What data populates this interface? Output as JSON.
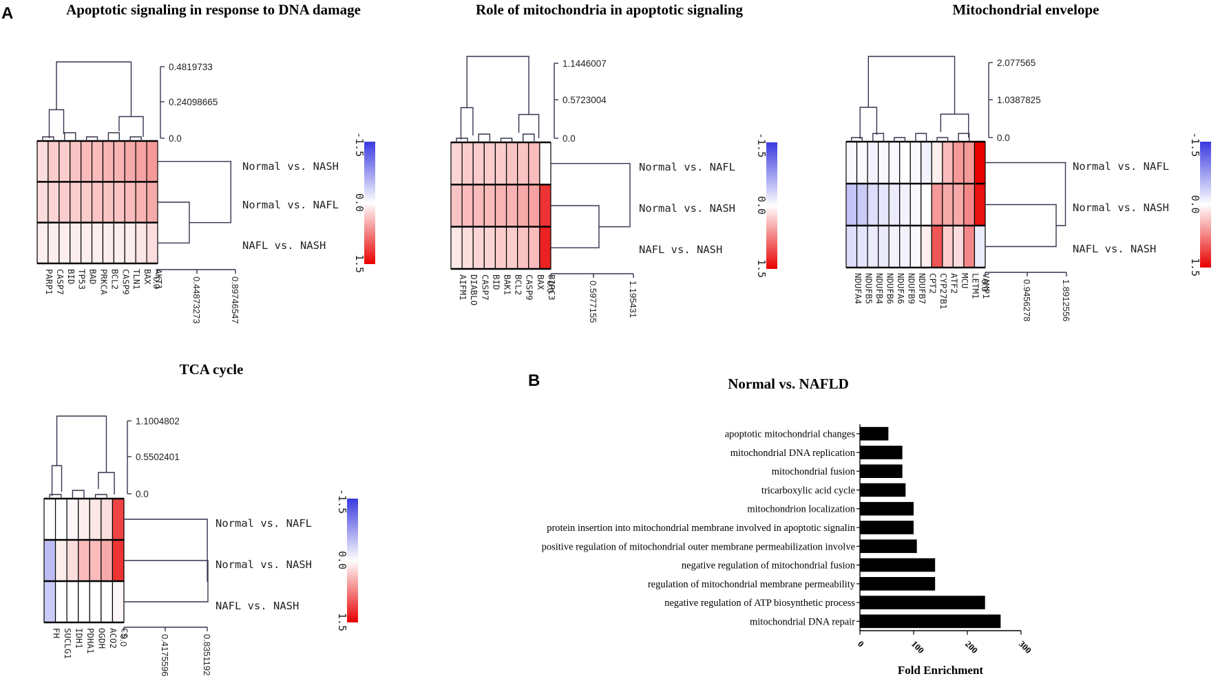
{
  "panel_labels": {
    "a": "A",
    "b": "B"
  },
  "chart_data": [
    {
      "type": "heatmap",
      "title": "Apoptotic signaling in response to DNA damage",
      "genes": [
        "PARP1",
        "CASP7",
        "BID",
        "TP53",
        "BAD",
        "PRKCA",
        "BCL2",
        "CASP9",
        "TLN1",
        "BAX",
        "AKT1"
      ],
      "rows": [
        "Normal vs. NASH",
        "Normal vs. NAFL",
        "NAFL vs. NASH"
      ],
      "values": [
        [
          0.2,
          0.3,
          0.3,
          0.35,
          0.4,
          0.4,
          0.45,
          0.45,
          0.5,
          0.55,
          0.6
        ],
        [
          0.2,
          0.25,
          0.3,
          0.3,
          0.3,
          0.35,
          0.35,
          0.35,
          0.4,
          0.45,
          0.5
        ],
        [
          0.1,
          0.1,
          0.1,
          0.1,
          0.1,
          0.1,
          0.1,
          0.1,
          0.1,
          0.15,
          0.2
        ]
      ],
      "color_scale": {
        "min": -1.5,
        "mid": 0.0,
        "max": 1.5,
        "labels": [
          "-1.5",
          "0.0",
          "1.5"
        ],
        "neg_color": "#3a3ae0",
        "pos_color": "#e80000"
      },
      "col_tree_ticks": [
        "0.4819733",
        "0.24098665",
        "0.0"
      ],
      "row_tree_ticks": [
        "0.0",
        "0.44873273",
        "0.89746547"
      ]
    },
    {
      "type": "heatmap",
      "title": "Role of mitochondria in apoptotic signaling",
      "genes": [
        "AIFM1",
        "DIABLO",
        "CASP7",
        "BID",
        "BAK1",
        "BCL2",
        "CASP9",
        "BAX",
        "BIRC3"
      ],
      "rows": [
        "Normal vs. NAFL",
        "Normal vs. NASH",
        "NAFL vs. NASH"
      ],
      "values": [
        [
          0.25,
          0.3,
          0.3,
          0.3,
          0.3,
          0.35,
          0.35,
          0.4,
          0.0
        ],
        [
          0.35,
          0.4,
          0.4,
          0.4,
          0.45,
          0.45,
          0.5,
          0.55,
          1.2
        ],
        [
          0.15,
          0.2,
          0.25,
          0.25,
          0.3,
          0.3,
          0.35,
          0.4,
          1.3
        ]
      ],
      "color_scale": {
        "min": -1.5,
        "mid": 0.0,
        "max": 1.5,
        "labels": [
          "-1.5",
          "0.0",
          "1.5"
        ],
        "neg_color": "#3a3ae0",
        "pos_color": "#e80000"
      },
      "col_tree_ticks": [
        "1.1446007",
        "0.5723004",
        "0.0"
      ],
      "row_tree_ticks": [
        "0.0",
        "0.5977155",
        "1.195431"
      ]
    },
    {
      "type": "heatmap",
      "title": "Mitochondrial envelope",
      "genes": [
        "NDUFA4",
        "NDUFB5",
        "NDUFB4",
        "NDUFB6",
        "NDUFA6",
        "NDUFB9",
        "NDUFB7",
        "CPT2",
        "CYP27B1",
        "ATF2",
        "MCU",
        "LETM1",
        "VAMP1"
      ],
      "rows": [
        "Normal vs. NAFL",
        "Normal vs. NASH",
        "NAFL vs. NASH"
      ],
      "values": [
        [
          -0.05,
          -0.05,
          -0.1,
          -0.05,
          -0.05,
          0.0,
          -0.05,
          -0.1,
          0.1,
          0.4,
          0.6,
          0.6,
          1.5
        ],
        [
          -0.45,
          -0.4,
          -0.25,
          -0.2,
          -0.15,
          -0.1,
          -0.05,
          0.0,
          0.6,
          0.5,
          0.5,
          0.7,
          1.4
        ],
        [
          -0.25,
          -0.2,
          -0.15,
          -0.15,
          -0.1,
          -0.1,
          -0.05,
          0.1,
          1.0,
          0.3,
          0.2,
          0.7,
          -0.15
        ]
      ],
      "color_scale": {
        "min": -1.5,
        "mid": 0.0,
        "max": 1.5,
        "labels": [
          "-1.5",
          "0.0",
          "1.5"
        ],
        "neg_color": "#3a3ae0",
        "pos_color": "#e80000"
      },
      "col_tree_ticks": [
        "2.077565",
        "1.0387825",
        "0.0"
      ],
      "row_tree_ticks": [
        "0.0",
        "0.9456278",
        "1.8912556"
      ]
    },
    {
      "type": "heatmap",
      "title": "TCA cycle",
      "genes": [
        "FH",
        "SUCLG1",
        "IDH1",
        "PDHA1",
        "OGDH",
        "ACO2",
        "CS"
      ],
      "rows": [
        "Normal vs. NAFL",
        "Normal vs. NASH",
        "NAFL vs. NASH"
      ],
      "values": [
        [
          0.0,
          0.0,
          0.05,
          0.1,
          0.15,
          0.2,
          1.1
        ],
        [
          -0.5,
          0.1,
          0.2,
          0.4,
          0.4,
          0.5,
          1.2
        ],
        [
          -0.4,
          0.0,
          0.0,
          0.0,
          0.0,
          0.0,
          0.05
        ]
      ],
      "color_scale": {
        "min": -1.5,
        "mid": 0.0,
        "max": 1.5,
        "labels": [
          "-1.5",
          "0.0",
          "1.5"
        ],
        "neg_color": "#3a3ae0",
        "pos_color": "#e80000"
      },
      "col_tree_ticks": [
        "1.1004802",
        "0.5502401",
        "0.0"
      ],
      "row_tree_ticks": [
        "0.0",
        "0.4175596",
        "0.8351192"
      ]
    },
    {
      "type": "bar",
      "orientation": "horizontal",
      "title": "Normal vs. NAFLD",
      "categories": [
        "apoptotic mitochondrial changes",
        "mitochondrial DNA replication",
        "mitochondrial fusion",
        "tricarboxylic acid cycle",
        "mitochondrion localization",
        "protein insertion into mitochondrial membrane involved in apoptotic signalin",
        "positive regulation of mitochondrial outer membrane permeabilization involve",
        "negative regulation of mitochondrial fusion",
        "regulation of mitochondrial membrane permeability",
        "negative regulation of ATP biosynthetic process",
        "mitochondrial DNA repair"
      ],
      "values": [
        53,
        79,
        79,
        85,
        100,
        100,
        106,
        140,
        140,
        233,
        262
      ],
      "xlabel": "Fold Enrichment",
      "ylabel": "",
      "xlim": [
        0,
        300
      ],
      "xticks": [
        "0",
        "100",
        "200",
        "300"
      ],
      "bar_color": "#000000"
    }
  ]
}
